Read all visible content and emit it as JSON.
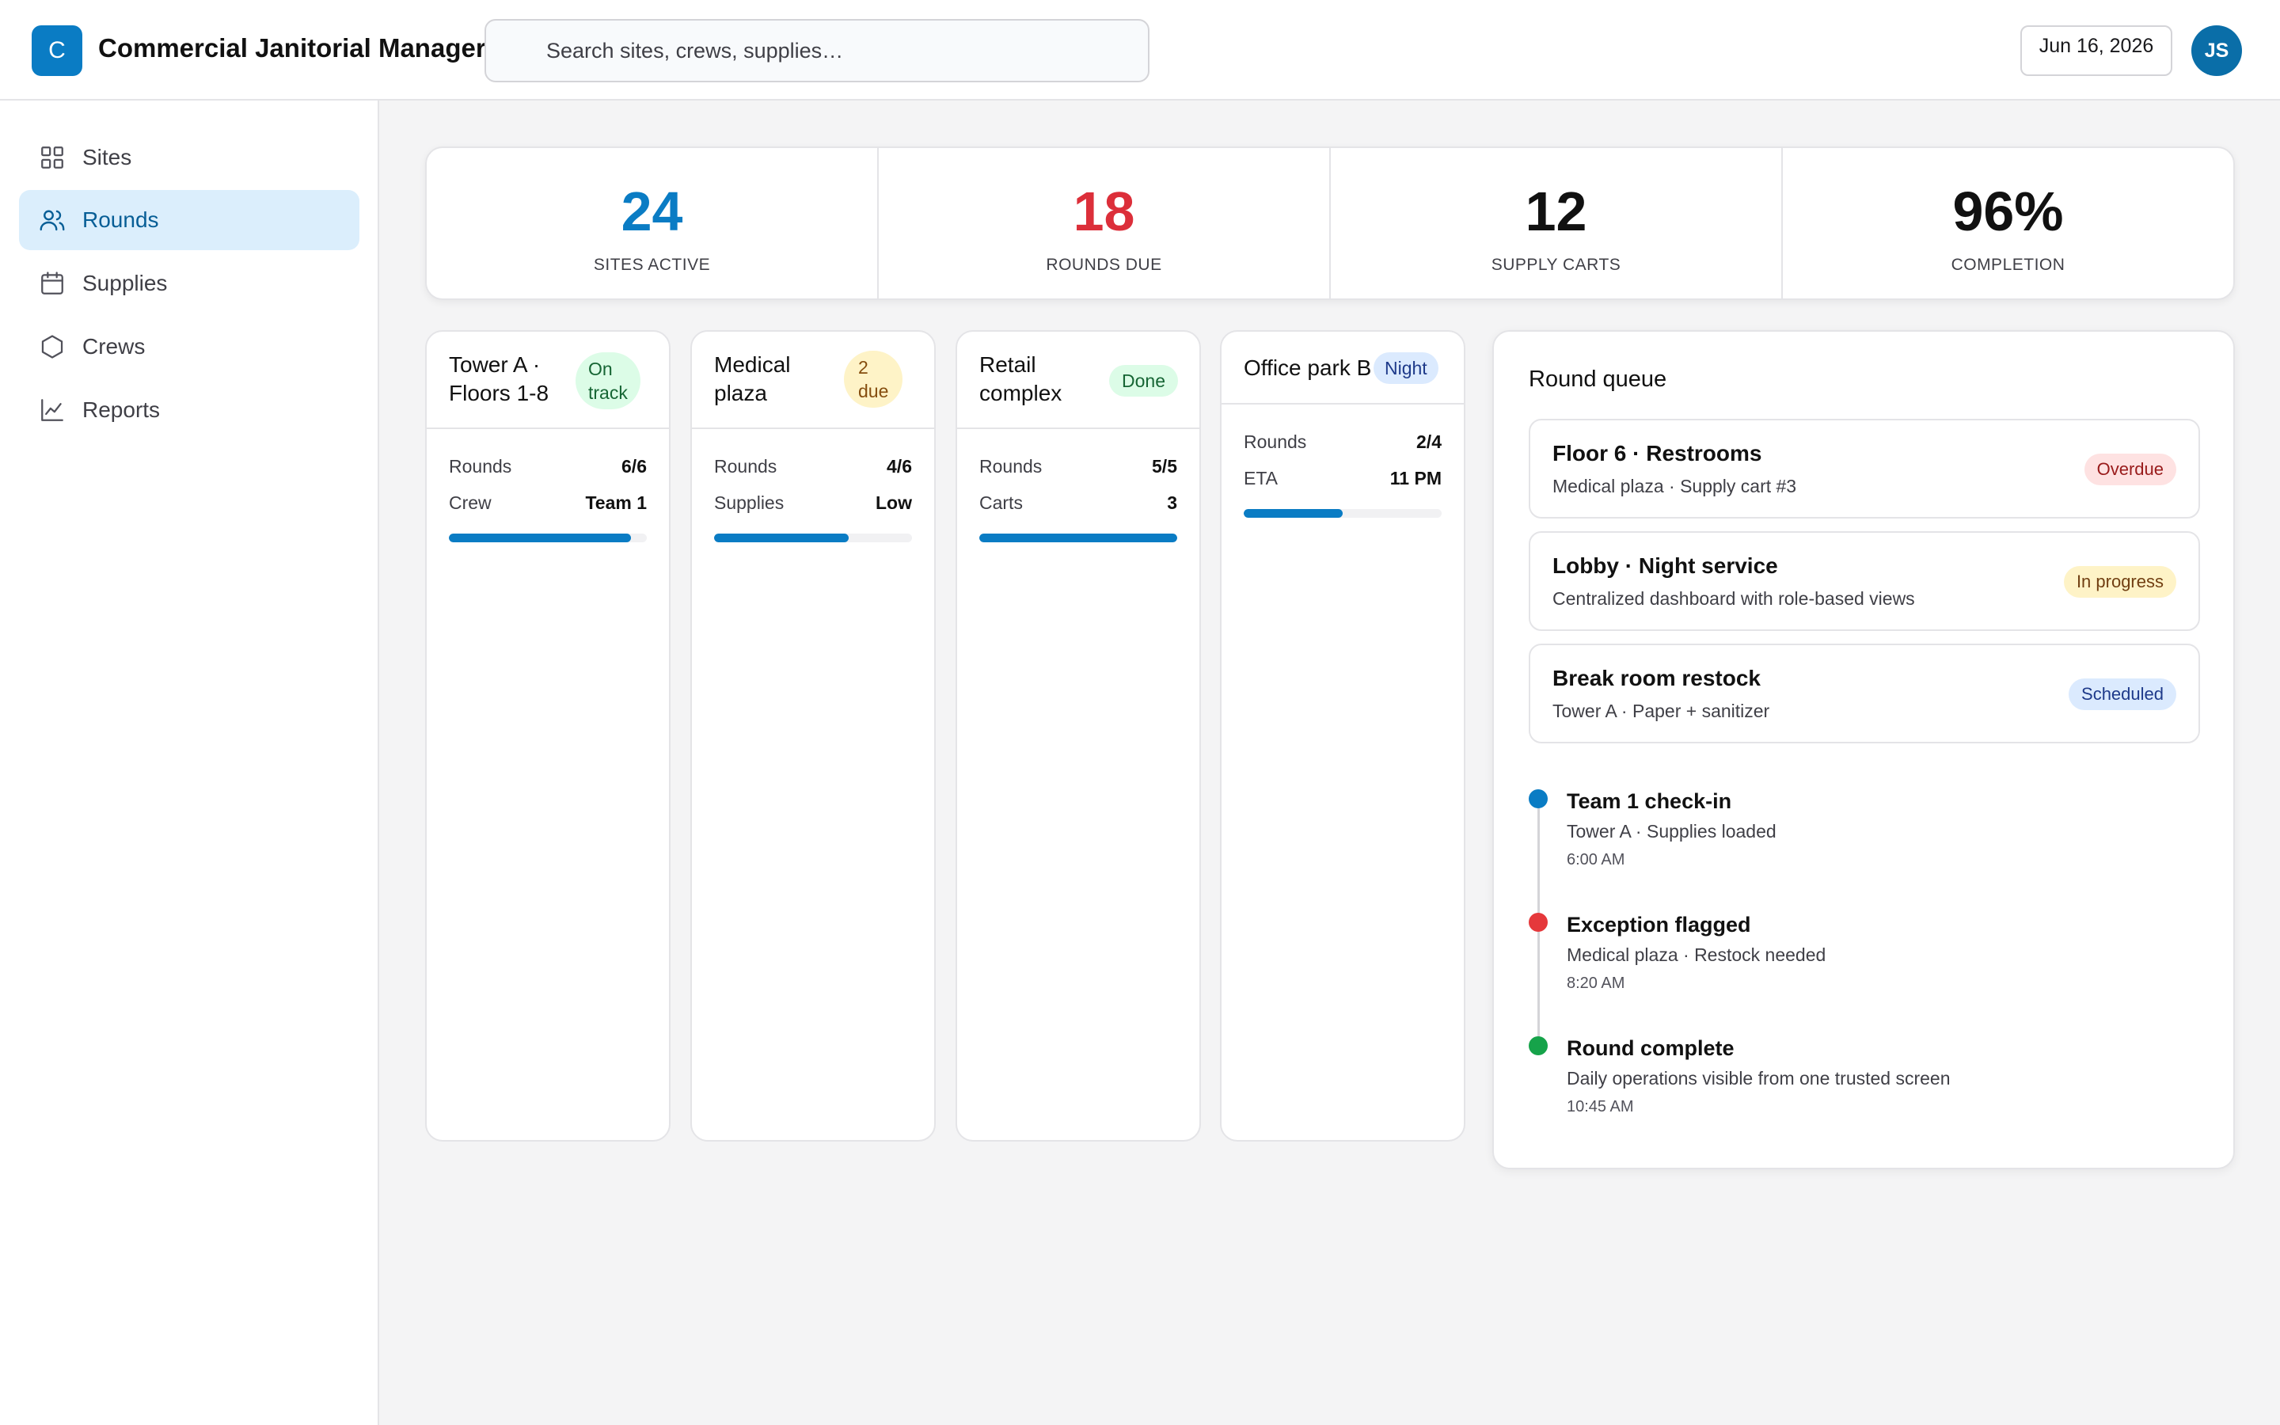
{
  "header": {
    "logo_letter": "C",
    "title": "Commercial Janitorial Manager",
    "search_placeholder": "Search sites, crews, supplies…",
    "date": "Jun 16, 2026",
    "user_initials": "JS"
  },
  "sidebar": {
    "items": [
      {
        "label": "Sites",
        "icon": "grid-icon",
        "active": false
      },
      {
        "label": "Rounds",
        "icon": "users-icon",
        "active": true
      },
      {
        "label": "Supplies",
        "icon": "calendar-icon",
        "active": false
      },
      {
        "label": "Crews",
        "icon": "hexagon-icon",
        "active": false
      },
      {
        "label": "Reports",
        "icon": "chart-line-icon",
        "active": false
      }
    ]
  },
  "stats": [
    {
      "value": "24",
      "label": "SITES ACTIVE",
      "color": "#0a7cc4"
    },
    {
      "value": "18",
      "label": "ROUNDS DUE",
      "color": "#dc2f3a"
    },
    {
      "value": "12",
      "label": "SUPPLY CARTS",
      "color": "#111111"
    },
    {
      "value": "96%",
      "label": "COMPLETION",
      "color": "#111111"
    }
  ],
  "sites": [
    {
      "title_line1": "Tower A ·",
      "title_line2": "Floors 1-8",
      "badge_line1": "On",
      "badge_line2": "track",
      "rows": [
        {
          "label": "Rounds",
          "value": "6/6"
        },
        {
          "label": "Crew",
          "value": "Team 1"
        }
      ],
      "progress": 0.92
    },
    {
      "title_line1": "Medical",
      "title_line2": "plaza",
      "badge_line1": "2",
      "badge_line2": "due",
      "rows": [
        {
          "label": "Rounds",
          "value": "4/6"
        },
        {
          "label": "Supplies",
          "value": "Low"
        }
      ],
      "progress": 0.68
    },
    {
      "title_line1": "Retail",
      "title_line2": "complex",
      "badge_line1": "Done",
      "badge_line2": "",
      "rows": [
        {
          "label": "Rounds",
          "value": "5/5"
        },
        {
          "label": "Carts",
          "value": "3"
        }
      ],
      "progress": 1.0
    },
    {
      "title_line1": "Office park B",
      "title_line2": "",
      "badge_line1": "Night",
      "badge_line2": "",
      "rows": [
        {
          "label": "Rounds",
          "value": "2/4"
        },
        {
          "label": "ETA",
          "value": "11 PM"
        }
      ],
      "progress": 0.5
    }
  ],
  "queue": {
    "title": "Round queue",
    "items": [
      {
        "title": "Floor 6 · Restrooms",
        "subtitle": "Medical plaza · Supply cart #3",
        "badge": "Overdue"
      },
      {
        "title": "Lobby · Night service",
        "subtitle": "Centralized dashboard with role-based views",
        "badge": "In progress"
      },
      {
        "title": "Break room restock",
        "subtitle": "Tower A · Paper + sanitizer",
        "badge": "Scheduled"
      }
    ],
    "timeline": [
      {
        "title": "Team 1 check-in",
        "subtitle": "Tower A · Supplies loaded",
        "time": "6:00 AM",
        "color": "#0a7cc4"
      },
      {
        "title": "Exception flagged",
        "subtitle": "Medical plaza · Restock needed",
        "time": "8:20 AM",
        "color": "#e5383b"
      },
      {
        "title": "Round complete",
        "subtitle": "Daily operations visible from one trusted screen",
        "time": "10:45 AM",
        "color": "#16a34a"
      }
    ]
  }
}
